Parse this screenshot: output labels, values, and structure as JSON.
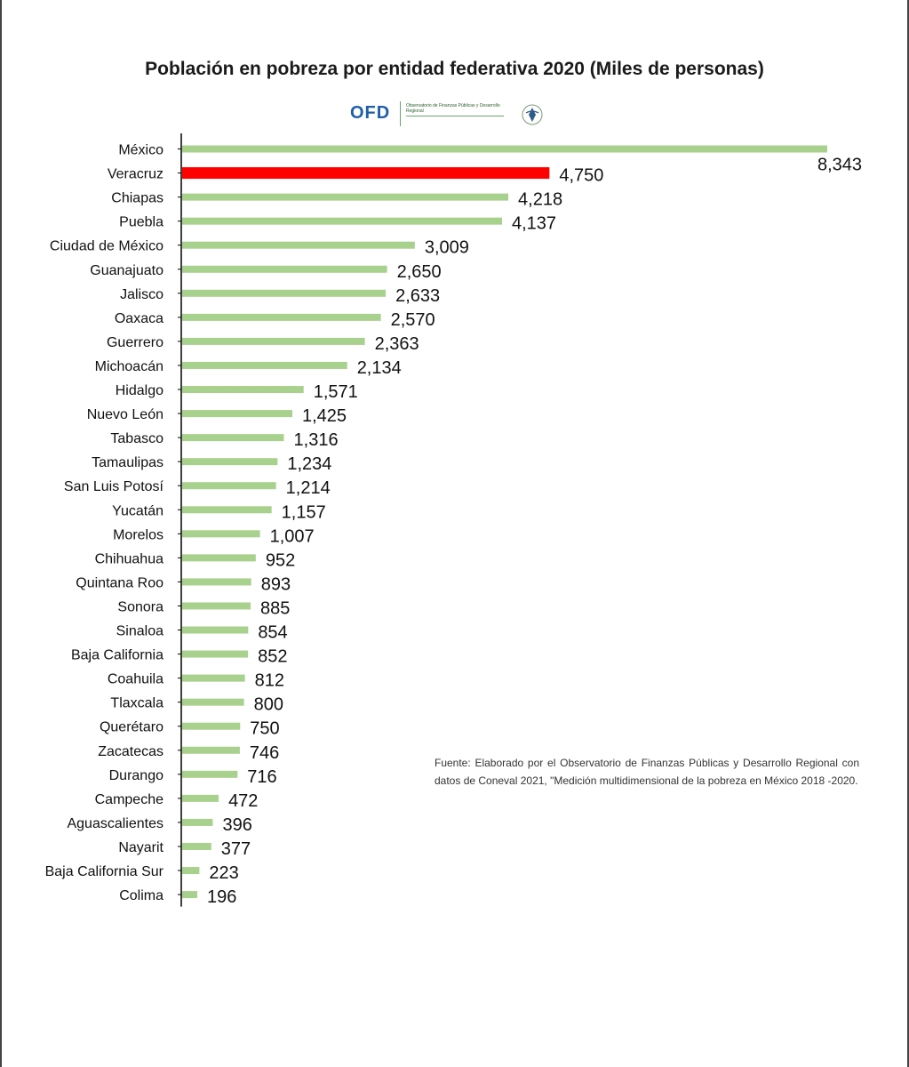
{
  "title": "Población  en pobreza por entidad federativa 2020 (Miles de personas)",
  "logo": {
    "text": "OFD",
    "subtext": "Observatorio de Finanzas Públicas y Desarrollo Regional"
  },
  "source_note": "Fuente: Elaborado por el Observatorio de Finanzas Públicas y Desarrollo Regional con datos de Coneval 2021, \"Medición multidimensional de la pobreza en México 2018 -2020.",
  "colors": {
    "bar": "#a9d18e",
    "highlight": "#ff0000",
    "axis": "#000000"
  },
  "chart_data": {
    "type": "bar",
    "orientation": "horizontal",
    "title": "Población  en pobreza por entidad federativa 2020 (Miles de personas)",
    "xlabel": "",
    "ylabel": "",
    "xlim": [
      0,
      8343
    ],
    "grid": false,
    "legend": "none",
    "highlight": "Veracruz",
    "categories": [
      "México",
      "Veracruz",
      "Chiapas",
      "Puebla",
      "Ciudad de México",
      "Guanajuato",
      "Jalisco",
      "Oaxaca",
      "Guerrero",
      "Michoacán",
      "Hidalgo",
      "Nuevo León",
      "Tabasco",
      "Tamaulipas",
      "San Luis Potosí",
      "Yucatán",
      "Morelos",
      "Chihuahua",
      "Quintana Roo",
      "Sonora",
      "Sinaloa",
      "Baja California",
      "Coahuila",
      "Tlaxcala",
      "Querétaro",
      "Zacatecas",
      "Durango",
      "Campeche",
      "Aguascalientes",
      "Nayarit",
      "Baja California Sur",
      "Colima"
    ],
    "values": [
      8343,
      4750,
      4218,
      4137,
      3009,
      2650,
      2633,
      2570,
      2363,
      2134,
      1571,
      1425,
      1316,
      1234,
      1214,
      1157,
      1007,
      952,
      893,
      885,
      854,
      852,
      812,
      800,
      750,
      746,
      716,
      472,
      396,
      377,
      223,
      196
    ],
    "data_labels": [
      "8,343",
      "4,750",
      "4,218",
      "4,137",
      "3,009",
      "2,650",
      "2,633",
      "2,570",
      "2,363",
      "2,134",
      "1,571",
      "1,425",
      "1,316",
      "1,234",
      "1,214",
      "1,157",
      "1,007",
      "952",
      "893",
      "885",
      "854",
      "852",
      "812",
      "800",
      "750",
      "746",
      "716",
      "472",
      "396",
      "377",
      "223",
      "196"
    ]
  }
}
